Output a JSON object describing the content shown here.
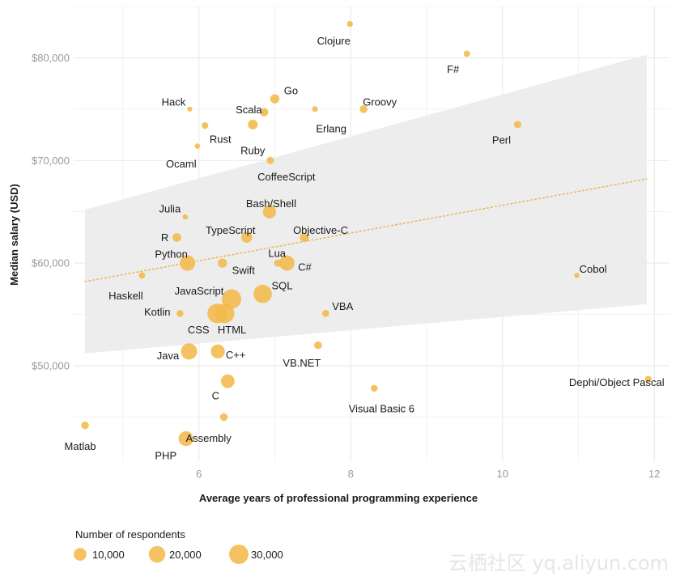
{
  "chart_data": {
    "type": "scatter",
    "title": "",
    "xlabel": "Average years of professional programming experience",
    "ylabel": "Median salary (USD)",
    "xlim": [
      4.35,
      12.2
    ],
    "ylim": [
      40700,
      85000
    ],
    "x_ticks": [
      6,
      8,
      10,
      12
    ],
    "x_tick_labels": [
      "6",
      "8",
      "10",
      "12"
    ],
    "y_ticks": [
      50000,
      60000,
      70000,
      80000
    ],
    "y_tick_labels": [
      "$50,000",
      "$60,000",
      "$70,000",
      "$80,000"
    ],
    "grid": true,
    "colors": {
      "point": "#f3b94a",
      "trend": "#e6b95a",
      "band": "#ebebeb",
      "grid": "#ebebeb"
    },
    "trend": {
      "x": [
        4.5,
        11.9
      ],
      "y": [
        58200,
        68200
      ]
    },
    "confidence_band": {
      "x": [
        4.5,
        11.9
      ],
      "upper": [
        65200,
        80300
      ],
      "lower": [
        51200,
        56000
      ]
    },
    "points": [
      {
        "name": "Clojure",
        "x": 7.99,
        "y": 83300,
        "respondents": 600
      },
      {
        "name": "F#",
        "x": 9.53,
        "y": 80400,
        "respondents": 800
      },
      {
        "name": "Hack",
        "x": 5.88,
        "y": 75000,
        "respondents": 200
      },
      {
        "name": "Scala",
        "x": 6.86,
        "y": 74700,
        "respondents": 2600
      },
      {
        "name": "Go",
        "x": 7.0,
        "y": 76000,
        "respondents": 3600
      },
      {
        "name": "Groovy",
        "x": 8.17,
        "y": 75000,
        "respondents": 2000
      },
      {
        "name": "Erlang",
        "x": 7.53,
        "y": 75000,
        "respondents": 500
      },
      {
        "name": "Rust",
        "x": 6.08,
        "y": 73400,
        "respondents": 1100
      },
      {
        "name": "Ruby",
        "x": 6.71,
        "y": 73500,
        "respondents": 4500
      },
      {
        "name": "Perl",
        "x": 10.2,
        "y": 73500,
        "respondents": 1600
      },
      {
        "name": "Ocaml",
        "x": 5.98,
        "y": 71400,
        "respondents": 300
      },
      {
        "name": "CoffeeScript",
        "x": 6.94,
        "y": 70000,
        "respondents": 1600
      },
      {
        "name": "Bash/Shell",
        "x": 6.93,
        "y": 65000,
        "respondents": 11000
      },
      {
        "name": "Julia",
        "x": 5.82,
        "y": 64500,
        "respondents": 300
      },
      {
        "name": "R",
        "x": 5.71,
        "y": 62500,
        "respondents": 3000
      },
      {
        "name": "TypeScript",
        "x": 6.63,
        "y": 62500,
        "respondents": 6000
      },
      {
        "name": "Objective-C",
        "x": 7.39,
        "y": 62500,
        "respondents": 3500
      },
      {
        "name": "Python",
        "x": 5.85,
        "y": 60000,
        "respondents": 17000
      },
      {
        "name": "Swift",
        "x": 6.31,
        "y": 60000,
        "respondents": 3600
      },
      {
        "name": "Lua",
        "x": 7.04,
        "y": 60000,
        "respondents": 1600
      },
      {
        "name": "C#",
        "x": 7.16,
        "y": 60000,
        "respondents": 16000
      },
      {
        "name": "Cobol",
        "x": 10.98,
        "y": 58800,
        "respondents": 300
      },
      {
        "name": "Haskell",
        "x": 5.25,
        "y": 58800,
        "respondents": 900
      },
      {
        "name": "SQL",
        "x": 6.84,
        "y": 57000,
        "respondents": 26000
      },
      {
        "name": "JavaScript",
        "x": 6.43,
        "y": 56500,
        "respondents": 30000
      },
      {
        "name": "Kotlin",
        "x": 5.75,
        "y": 55100,
        "respondents": 1200
      },
      {
        "name": "VBA",
        "x": 7.67,
        "y": 55100,
        "respondents": 1300
      },
      {
        "name": "CSS",
        "x": 6.24,
        "y": 55100,
        "respondents": 30000
      },
      {
        "name": "HTML",
        "x": 6.34,
        "y": 55100,
        "respondents": 30000
      },
      {
        "name": "Java",
        "x": 5.87,
        "y": 51400,
        "respondents": 19000
      },
      {
        "name": "C++",
        "x": 6.25,
        "y": 51400,
        "respondents": 13000
      },
      {
        "name": "VB.NET",
        "x": 7.57,
        "y": 52000,
        "respondents": 2000
      },
      {
        "name": "C",
        "x": 6.38,
        "y": 48500,
        "respondents": 12000
      },
      {
        "name": "Visual Basic 6",
        "x": 8.31,
        "y": 47800,
        "respondents": 1200
      },
      {
        "name": "Dephi/Object Pascal",
        "x": 11.92,
        "y": 48700,
        "respondents": 1000
      },
      {
        "name": "Assembly",
        "x": 6.33,
        "y": 45000,
        "respondents": 2100
      },
      {
        "name": "Matlab",
        "x": 4.5,
        "y": 44200,
        "respondents": 1900
      },
      {
        "name": "PHP",
        "x": 5.83,
        "y": 42900,
        "respondents": 15000
      }
    ],
    "legend": {
      "title": "Number of respondents",
      "entries": [
        {
          "label": "10,000",
          "respondents": 10000
        },
        {
          "label": "20,000",
          "respondents": 20000
        },
        {
          "label": "30,000",
          "respondents": 30000
        }
      ],
      "placement": "bottom-left"
    }
  },
  "watermark": "云栖社区 yq.aliyun.com"
}
